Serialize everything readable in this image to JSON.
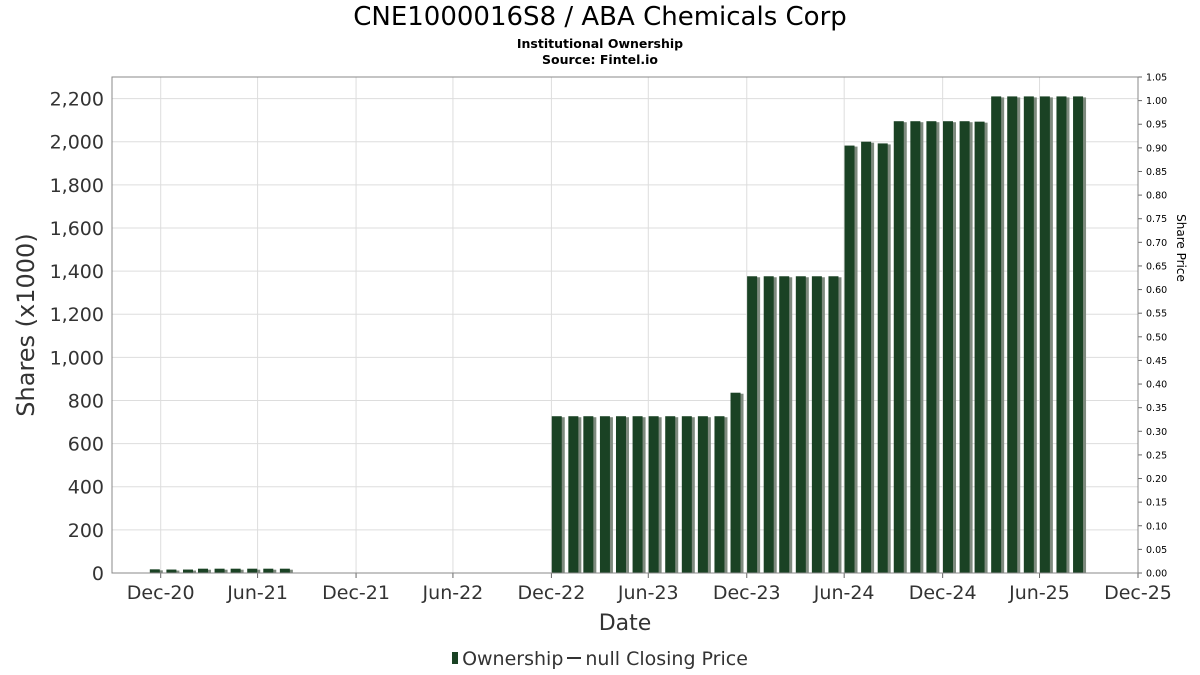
{
  "chart_data": {
    "type": "bar",
    "title": "CNE1000016S8 / ABA Chemicals Corp",
    "subtitle1": "Institutional Ownership",
    "subtitle2": "Source: Fintel.io",
    "xlabel": "Date",
    "ylabel": "Shares (x1000)",
    "y2label": "Share Price",
    "ylim": [
      0,
      2300
    ],
    "y2lim": [
      0,
      1.05
    ],
    "xlim": [
      "2020-10-01",
      "2025-12-31"
    ],
    "y_ticks": [
      0,
      200,
      400,
      600,
      800,
      1000,
      1200,
      1400,
      1600,
      1800,
      2000,
      2200
    ],
    "y_tick_labels": [
      "0",
      "200",
      "400",
      "600",
      "800",
      "1,000",
      "1,200",
      "1,400",
      "1,600",
      "1,800",
      "2,000",
      "2,200"
    ],
    "y2_ticks": [
      "0.00",
      "0.05",
      "0.10",
      "0.15",
      "0.20",
      "0.25",
      "0.30",
      "0.35",
      "0.40",
      "0.45",
      "0.50",
      "0.55",
      "0.60",
      "0.65",
      "0.70",
      "0.75",
      "0.80",
      "0.85",
      "0.90",
      "0.95",
      "1.00",
      "1.05"
    ],
    "x_ticks": [
      {
        "date": "2020-12-31",
        "label": "Dec-20"
      },
      {
        "date": "2021-06-30",
        "label": "Jun-21"
      },
      {
        "date": "2021-12-31",
        "label": "Dec-21"
      },
      {
        "date": "2022-06-30",
        "label": "Jun-22"
      },
      {
        "date": "2022-12-31",
        "label": "Dec-22"
      },
      {
        "date": "2023-06-30",
        "label": "Jun-23"
      },
      {
        "date": "2023-12-31",
        "label": "Dec-23"
      },
      {
        "date": "2024-06-30",
        "label": "Jun-24"
      },
      {
        "date": "2024-12-31",
        "label": "Dec-24"
      },
      {
        "date": "2025-06-30",
        "label": "Jun-25"
      },
      {
        "date": "2025-12-31",
        "label": "Dec-25"
      }
    ],
    "grid": true,
    "legend_position": "bottom",
    "legend": [
      {
        "label": "Ownership",
        "type": "bar"
      },
      {
        "label": "null Closing Price",
        "type": "line"
      }
    ],
    "colors": {
      "bar": "#1a4224",
      "bar_shadow": "#7e8a7e",
      "grid": "#dddddd",
      "axis": "#888888"
    },
    "series": [
      {
        "name": "Ownership",
        "x": [
          "2020-12-20",
          "2021-01-20",
          "2021-02-20",
          "2021-03-20",
          "2021-04-20",
          "2021-05-20",
          "2021-06-20",
          "2021-07-20",
          "2021-08-20",
          "2023-01-10",
          "2023-02-10",
          "2023-03-10",
          "2023-04-10",
          "2023-05-10",
          "2023-06-10",
          "2023-07-10",
          "2023-08-10",
          "2023-09-10",
          "2023-10-10",
          "2023-11-10",
          "2023-12-10",
          "2024-01-10",
          "2024-02-10",
          "2024-03-10",
          "2024-04-10",
          "2024-05-10",
          "2024-06-10",
          "2024-07-10",
          "2024-08-10",
          "2024-09-10",
          "2024-10-10",
          "2024-11-10",
          "2024-12-10",
          "2025-01-10",
          "2025-02-10",
          "2025-03-10",
          "2025-04-10",
          "2025-05-10",
          "2025-06-10",
          "2025-07-10",
          "2025-08-10",
          "2025-09-10"
        ],
        "values": [
          17,
          16,
          16,
          20,
          20,
          20,
          20,
          20,
          20,
          727,
          727,
          727,
          727,
          727,
          727,
          727,
          727,
          727,
          727,
          727,
          836,
          1376,
          1376,
          1376,
          1376,
          1376,
          1376,
          1982,
          2000,
          1992,
          2095,
          2095,
          2095,
          2095,
          2095,
          2093,
          2210,
          2210,
          2210,
          2210,
          2210,
          2210
        ]
      }
    ]
  }
}
